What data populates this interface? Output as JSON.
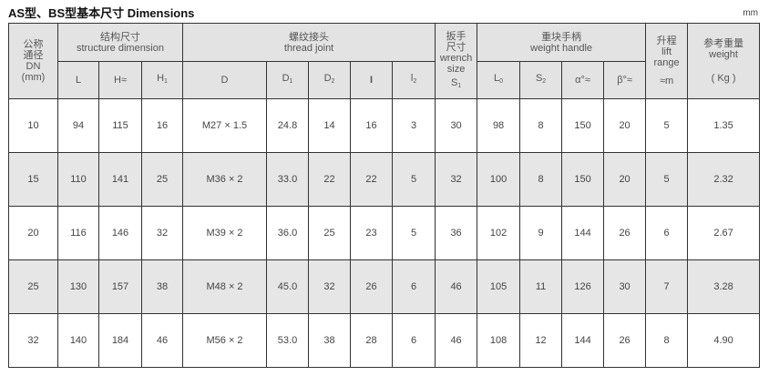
{
  "title": "AS型、BS型基本尺寸  Dimensions",
  "unit": "mm",
  "header": {
    "dn": [
      "公称",
      "通径",
      "DN",
      "(mm)"
    ],
    "structure": [
      "结构尺寸",
      "structure dimension"
    ],
    "thread": [
      "螺纹接头",
      "thread joint"
    ],
    "wrench": [
      "扳手",
      "尺寸",
      "wrench",
      "size"
    ],
    "weight_handle": [
      "重块手柄",
      "weight handle"
    ],
    "lift": [
      "升程",
      "lift",
      "range",
      "≈m"
    ],
    "weight": [
      "参考重量",
      "weight",
      "( Kg )"
    ],
    "sub": {
      "L": "L",
      "H": "H≈",
      "H1": "H",
      "H1_sub": "1",
      "D": "D",
      "D1": "D",
      "D1_sub": "1",
      "D2": "D",
      "D2_sub": "2",
      "l": "I",
      "l2": "l",
      "l2_sub": "2",
      "S1": "S",
      "S1_sub": "1",
      "L0": "L",
      "L0_sub": "0",
      "S2": "S",
      "S2_sub": "2",
      "alpha": "α°≈",
      "beta": "β°≈"
    }
  },
  "rows": [
    [
      "10",
      "94",
      "115",
      "16",
      "M27 × 1.5",
      "24.8",
      "14",
      "16",
      "3",
      "30",
      "98",
      "8",
      "150",
      "20",
      "5",
      "1.35"
    ],
    [
      "15",
      "110",
      "141",
      "25",
      "M36 × 2",
      "33.0",
      "22",
      "22",
      "5",
      "32",
      "100",
      "8",
      "150",
      "20",
      "5",
      "2.32"
    ],
    [
      "20",
      "116",
      "146",
      "32",
      "M39 × 2",
      "36.0",
      "25",
      "23",
      "5",
      "36",
      "102",
      "9",
      "144",
      "26",
      "6",
      "2.67"
    ],
    [
      "25",
      "130",
      "157",
      "38",
      "M48 × 2",
      "45.0",
      "32",
      "26",
      "6",
      "46",
      "105",
      "11",
      "126",
      "30",
      "7",
      "3.28"
    ],
    [
      "32",
      "140",
      "184",
      "46",
      "M56 × 2",
      "53.0",
      "38",
      "28",
      "6",
      "46",
      "108",
      "12",
      "144",
      "26",
      "8",
      "4.90"
    ]
  ]
}
